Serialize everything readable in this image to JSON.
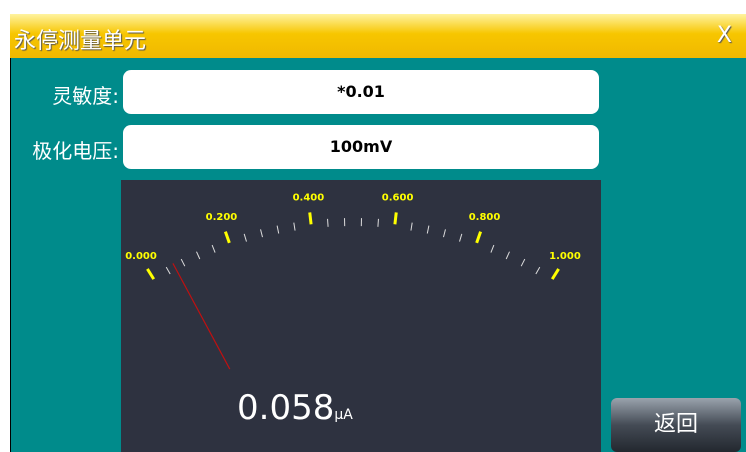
{
  "window": {
    "title": "永停测量单元",
    "close": "X"
  },
  "fields": [
    {
      "label": "灵敏度:",
      "value": "*0.01"
    },
    {
      "label": "极化电压:",
      "value": "100mV"
    }
  ],
  "gauge": {
    "min": 0,
    "max": 1,
    "ticks": [
      {
        "value": 0,
        "label": "0.000"
      },
      {
        "value": 0.2,
        "label": "0.200"
      },
      {
        "value": 0.4,
        "label": "0.400"
      },
      {
        "value": 0.6,
        "label": "0.600"
      },
      {
        "value": 0.8,
        "label": "0.800"
      },
      {
        "value": 1,
        "label": "1.000"
      }
    ],
    "reading": 0.058,
    "unit": "μA"
  },
  "button": "返回"
}
